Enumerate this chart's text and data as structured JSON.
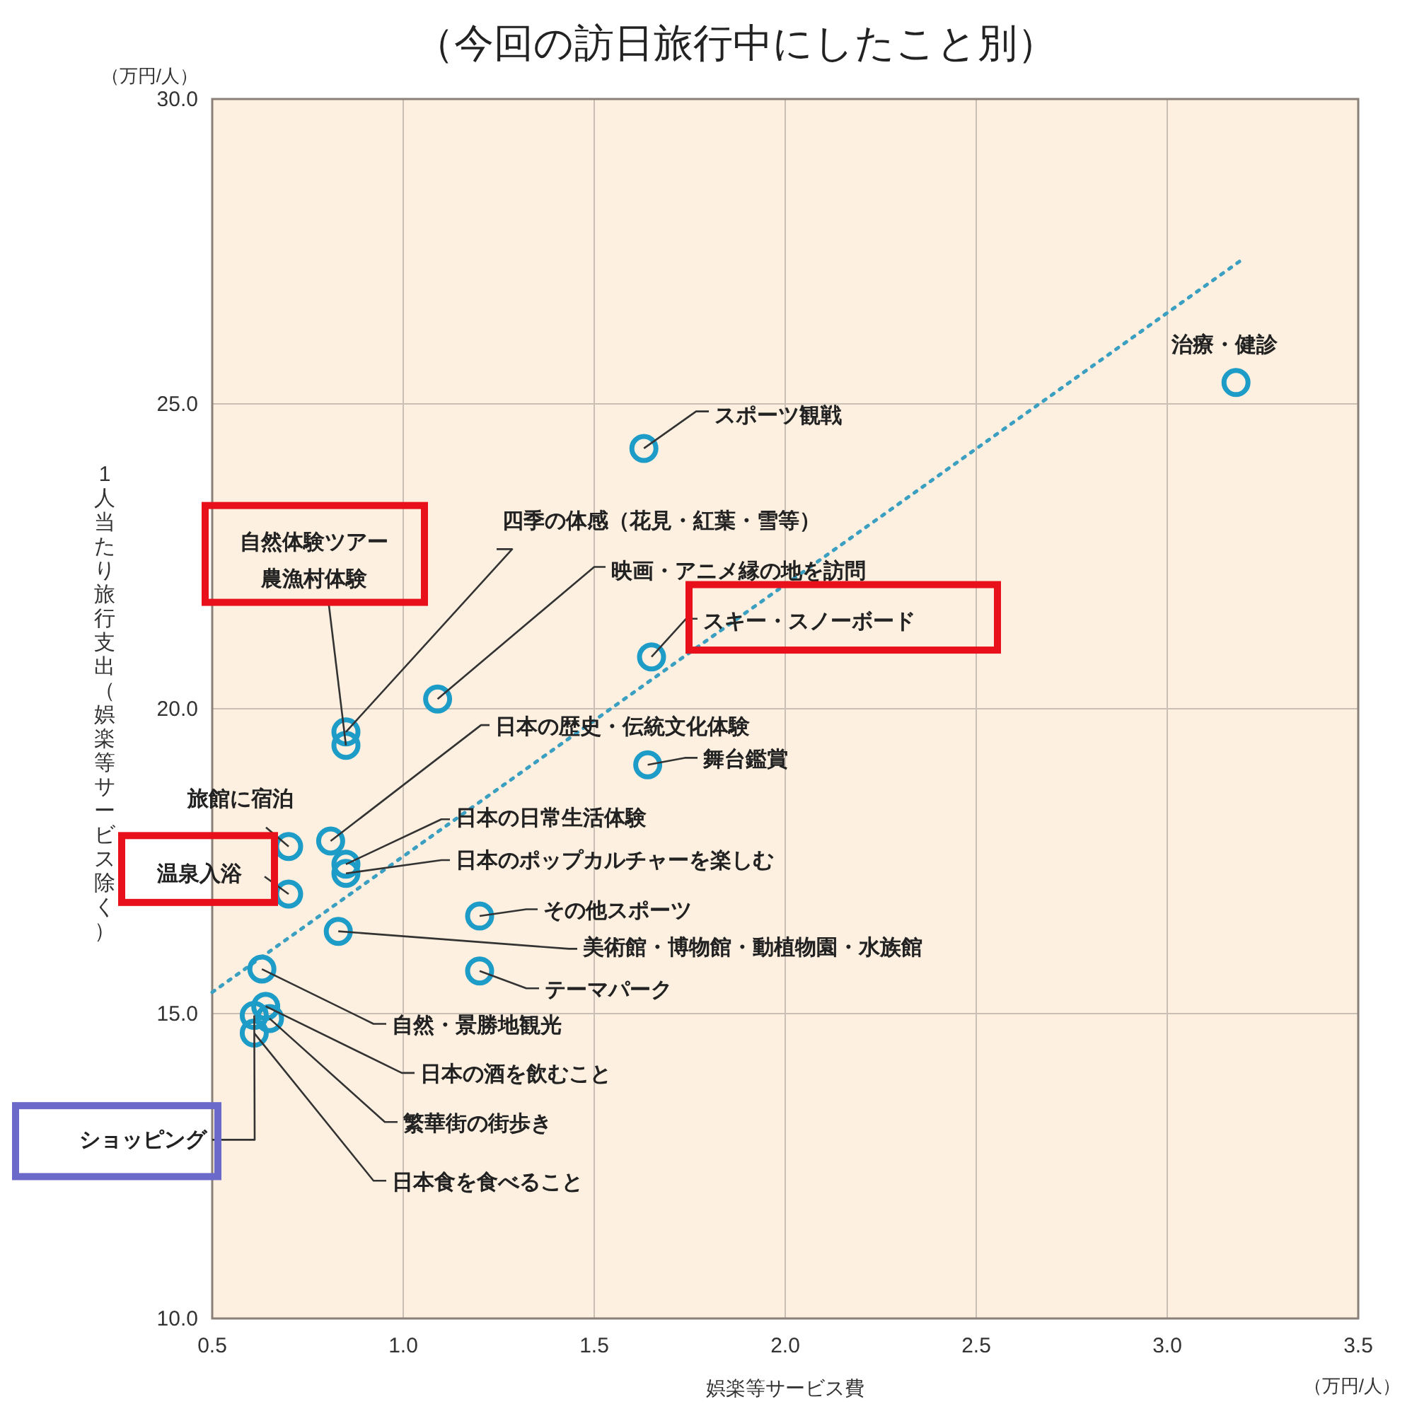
{
  "chart_data": {
    "type": "scatter",
    "title": "（今回の訪日旅行中にしたこと別）",
    "xlabel": "娯楽等サービス費",
    "ylabel": "1人当たり旅行支出（娯楽等サービス除く）",
    "xlim": [
      0.5,
      3.5
    ],
    "xticks": [
      0.5,
      {
        "value": 1,
        "label": "1.0"
      },
      1.5,
      {
        "value": 2,
        "label": "2.0"
      },
      2.5,
      {
        "value": 3,
        "label": "3.0"
      },
      3.5
    ],
    "ylim": [
      10,
      30
    ],
    "yticks": [
      {
        "value": 10,
        "label": "10.0"
      },
      {
        "value": 15,
        "label": "15.0"
      },
      {
        "value": 20,
        "label": "20.0"
      },
      {
        "value": 25,
        "label": "25.0"
      },
      {
        "value": 30,
        "label": "30.0"
      }
    ],
    "grid": true,
    "series": [
      {
        "type": "scatter",
        "marker": "circle",
        "color": "#1e9cc8",
        "x": [
          3.18,
          1.63,
          0.85,
          0.85,
          1.09,
          1.65,
          1.64,
          0.81,
          0.7,
          0.85,
          0.85,
          0.7,
          1.2,
          0.83,
          1.2,
          0.63,
          0.64,
          0.65,
          0.61,
          0.61
        ],
        "values": [
          25.35,
          24.27,
          19.62,
          19.4,
          20.16,
          20.85,
          19.08,
          17.83,
          17.74,
          17.45,
          17.3,
          16.96,
          16.6,
          16.35,
          15.7,
          15.73,
          15.12,
          14.92,
          14.97,
          14.68
        ]
      },
      {
        "type": "line",
        "color": "#3a9fc0",
        "line_style": "dotted",
        "x": [
          0.5,
          3.19
        ],
        "values": [
          15.35,
          27.34
        ]
      }
    ],
    "annotations": [
      {
        "text": "治療・健診",
        "x": 3.18,
        "y": 25.35
      },
      {
        "text": "スポーツ観戦",
        "x": 1.63,
        "y": 24.27
      },
      {
        "text": "四季の体感（花見・紅葉・雪等）",
        "x": 0.85,
        "y": 19.62
      },
      {
        "text": "自然体験ツアー農漁村体験",
        "x": 0.85,
        "y": 19.4
      },
      {
        "text": "映画・アニメ縁の地を訪問",
        "x": 1.09,
        "y": 20.16
      },
      {
        "text": "スキー・スノーボード",
        "x": 1.65,
        "y": 20.85
      },
      {
        "text": "舞台鑑賞",
        "x": 1.64,
        "y": 19.08
      },
      {
        "text": "日本の歴史・伝統文化体験",
        "x": 0.81,
        "y": 17.83
      },
      {
        "text": "旅館に宿泊",
        "x": 0.7,
        "y": 17.74
      },
      {
        "text": "日本の日常生活体験",
        "x": 0.85,
        "y": 17.45
      },
      {
        "text": "日本のポップカルチャーを楽しむ",
        "x": 0.85,
        "y": 17.3
      },
      {
        "text": "温泉入浴",
        "x": 0.7,
        "y": 16.96
      },
      {
        "text": "その他スポーツ",
        "x": 1.2,
        "y": 16.6
      },
      {
        "text": "美術館・博物館・動植物園・水族館",
        "x": 0.83,
        "y": 16.35
      },
      {
        "text": "テーマパーク",
        "x": 1.2,
        "y": 15.7
      },
      {
        "text": "自然・景勝地観光",
        "x": 0.63,
        "y": 15.73
      },
      {
        "text": "日本の酒を飲むこと",
        "x": 0.64,
        "y": 15.12
      },
      {
        "text": "繁華街の街歩き",
        "x": 0.65,
        "y": 14.92
      },
      {
        "text": "ショッピング",
        "x": 0.61,
        "y": 14.97
      },
      {
        "text": "日本食を食べること",
        "x": 0.61,
        "y": 14.68
      },
      "（万円/人）",
      "（万円/人）"
    ]
  }
}
